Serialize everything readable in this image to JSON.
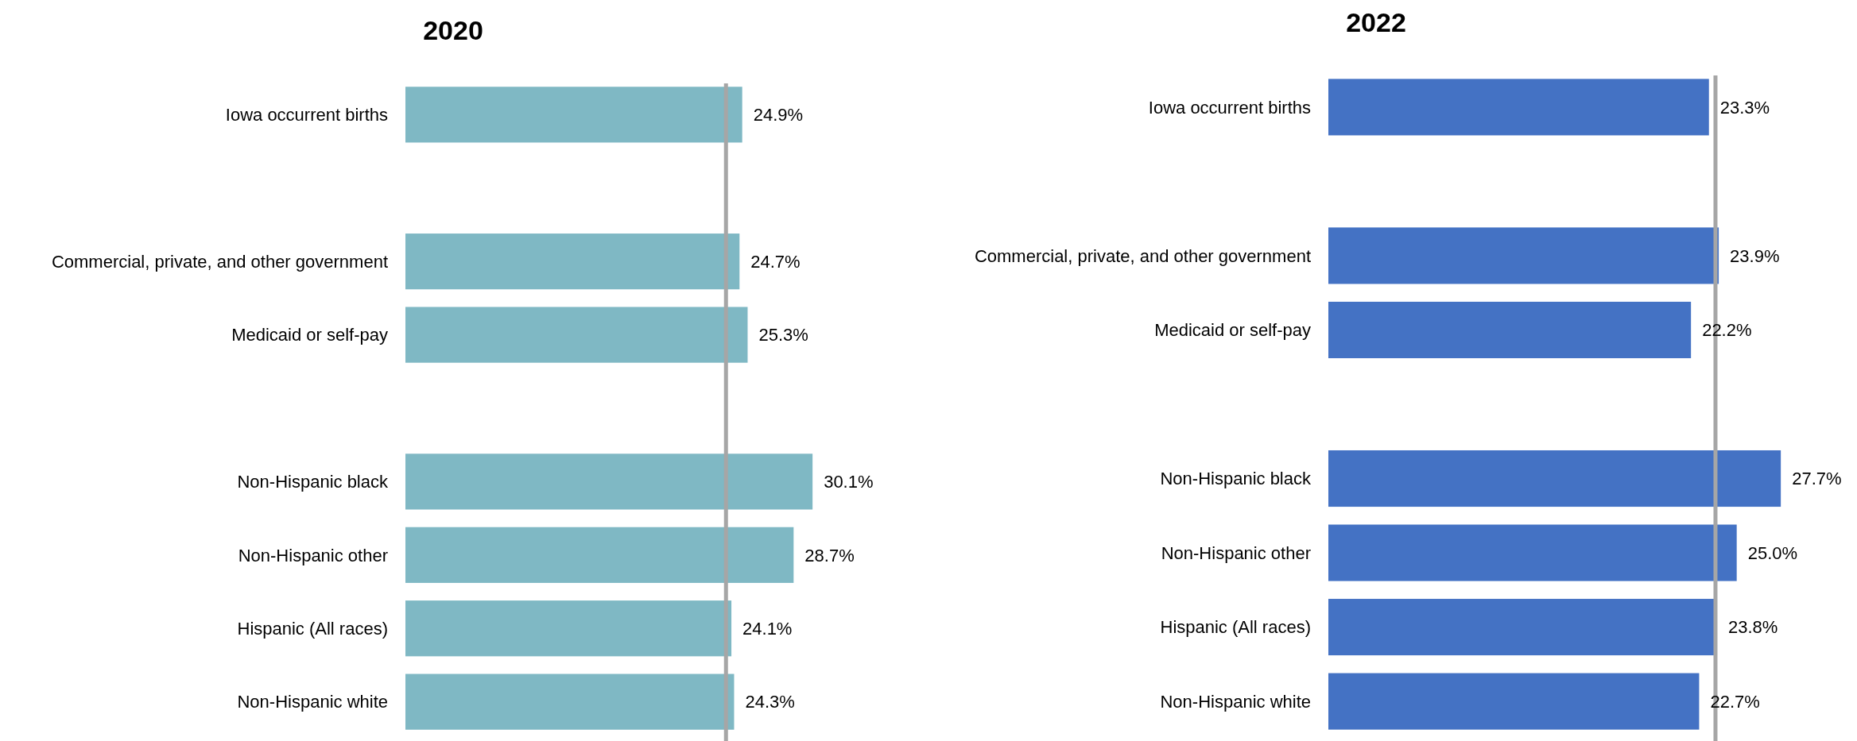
{
  "chart_data": [
    {
      "type": "bar",
      "orientation": "horizontal",
      "title": "2020",
      "categories": [
        "Iowa occurrent births",
        null,
        "Commercial, private, and other government",
        "Medicaid or self-pay",
        null,
        "Non-Hispanic black",
        "Non-Hispanic other",
        "Hispanic (All races)",
        "Non-Hispanic white"
      ],
      "series": [
        {
          "color": "#7fb8c4",
          "values": [
            24.9,
            null,
            24.7,
            25.3,
            null,
            30.1,
            28.7,
            24.1,
            24.3
          ],
          "value_labels": [
            "24.9%",
            null,
            "24.7%",
            "25.3%",
            null,
            "30.1%",
            "28.7%",
            "24.1%",
            "24.3%"
          ]
        }
      ],
      "tick_labels": "y",
      "ref_lines": [
        {
          "axis": "x",
          "value": 23.7,
          "color": "#a6a6a6"
        }
      ]
    },
    {
      "type": "bar",
      "orientation": "horizontal",
      "title": "2022",
      "categories": [
        "Iowa occurrent births",
        null,
        "Commercial, private, and other government",
        "Medicaid or self-pay",
        null,
        "Non-Hispanic black",
        "Non-Hispanic other",
        "Hispanic (All races)",
        "Non-Hispanic white"
      ],
      "series": [
        {
          "color": "#4472c4",
          "values": [
            23.3,
            null,
            23.9,
            22.2,
            null,
            27.7,
            25.0,
            23.8,
            22.7
          ],
          "value_labels": [
            "23.3%",
            null,
            "23.9%",
            "22.2%",
            null,
            "27.7%",
            "25.0%",
            "23.8%",
            "22.7%"
          ]
        }
      ],
      "tick_labels": "y",
      "ref_lines": [
        {
          "axis": "x",
          "value": 23.7,
          "color": "#a6a6a6"
        }
      ]
    }
  ]
}
